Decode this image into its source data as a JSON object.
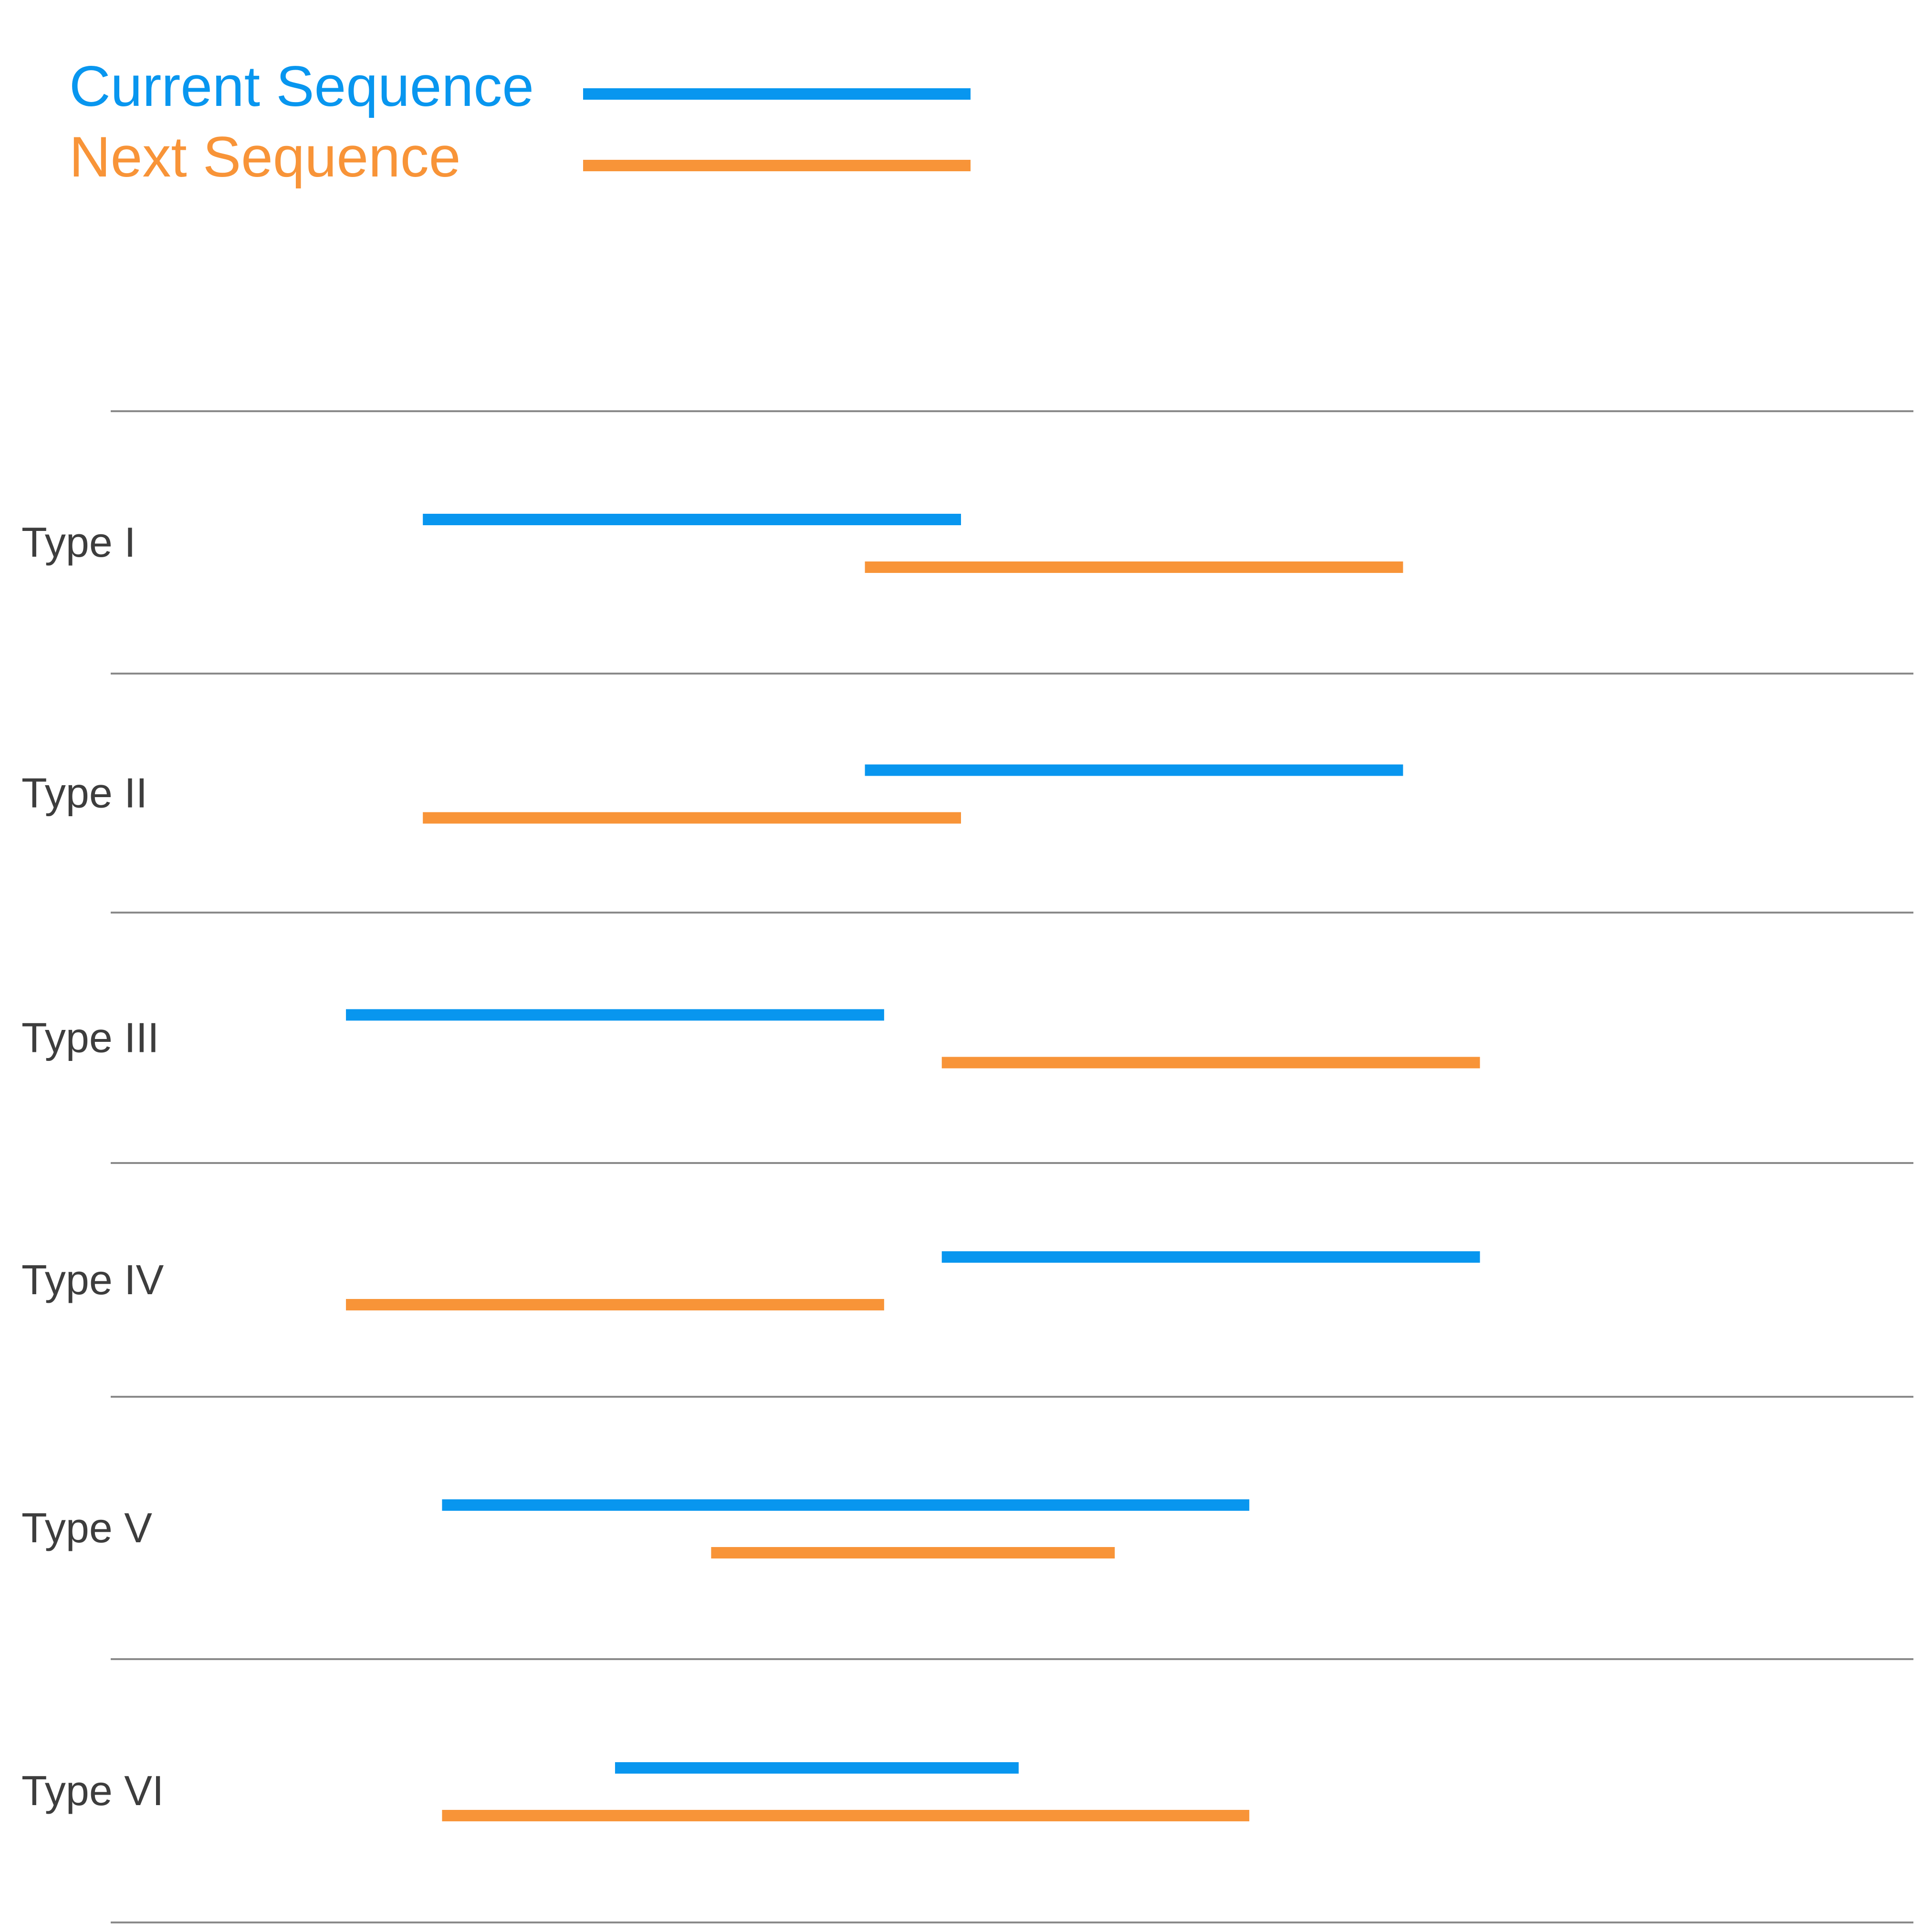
{
  "legend": {
    "current": {
      "label": "Current Sequence",
      "color": "#0896ef"
    },
    "next": {
      "label": "Next Sequence",
      "color": "#f89438"
    }
  },
  "divider_color": "#8a8a8a",
  "label_color": "#3d3d3d",
  "rows": [
    {
      "label": "Type I",
      "current": [
        0.22,
        0.5
      ],
      "next": [
        0.45,
        0.73
      ]
    },
    {
      "label": "Type II",
      "current": [
        0.45,
        0.73
      ],
      "next": [
        0.22,
        0.5
      ]
    },
    {
      "label": "Type III",
      "current": [
        0.18,
        0.46
      ],
      "next": [
        0.49,
        0.77
      ]
    },
    {
      "label": "Type IV",
      "current": [
        0.49,
        0.77
      ],
      "next": [
        0.18,
        0.46
      ]
    },
    {
      "label": "Type V",
      "current": [
        0.23,
        0.65
      ],
      "next": [
        0.37,
        0.58
      ]
    },
    {
      "label": "Type VI",
      "current": [
        0.32,
        0.53
      ],
      "next": [
        0.23,
        0.65
      ]
    }
  ]
}
